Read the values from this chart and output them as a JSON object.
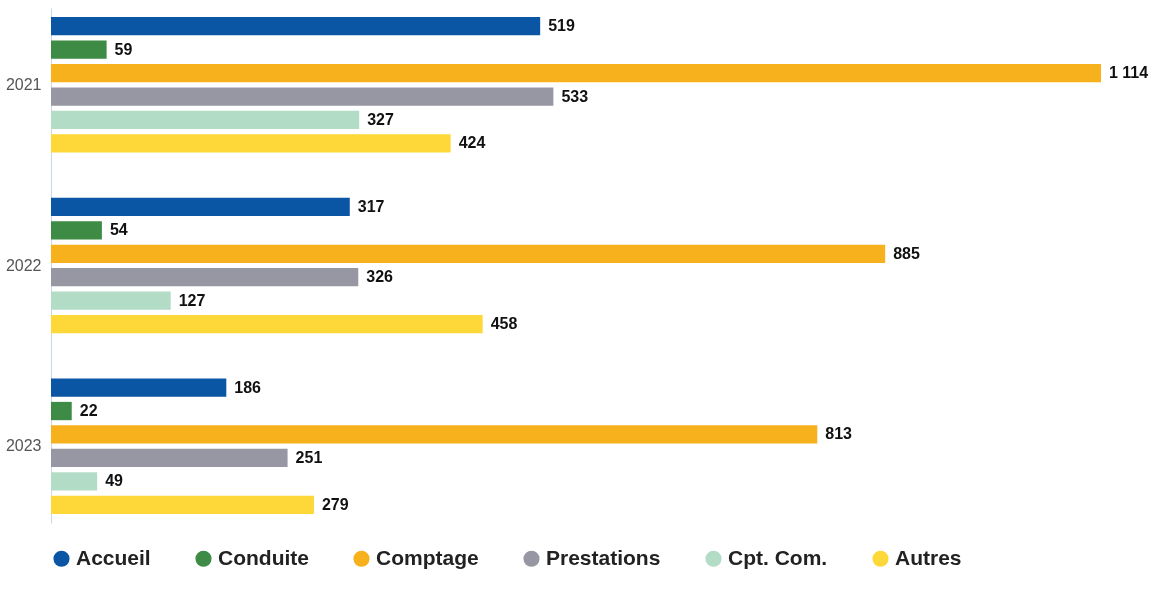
{
  "chart_data": {
    "type": "bar",
    "orientation": "horizontal",
    "categories": [
      "2021",
      "2022",
      "2023"
    ],
    "series": [
      {
        "name": "Accueil",
        "color": "#0b55a5",
        "values": [
          519,
          317,
          186
        ],
        "value_labels": [
          "519",
          "317",
          "186"
        ]
      },
      {
        "name": "Conduite",
        "color": "#3d8b45",
        "values": [
          59,
          54,
          22
        ],
        "value_labels": [
          "59",
          "54",
          "22"
        ]
      },
      {
        "name": "Comptage",
        "color": "#f6b11c",
        "values": [
          1114,
          885,
          813
        ],
        "value_labels": [
          "1 114",
          "885",
          "813"
        ]
      },
      {
        "name": "Prestations",
        "color": "#9797a3",
        "values": [
          533,
          326,
          251
        ],
        "value_labels": [
          "533",
          "326",
          "251"
        ]
      },
      {
        "name": "Cpt. Com.",
        "color": "#b3dcc6",
        "values": [
          327,
          127,
          49
        ],
        "value_labels": [
          "327",
          "127",
          "49"
        ]
      },
      {
        "name": "Autres",
        "color": "#fdd838",
        "values": [
          424,
          458,
          279
        ],
        "value_labels": [
          "424",
          "458",
          "279"
        ]
      }
    ],
    "grid": false,
    "legend": "bottom"
  }
}
